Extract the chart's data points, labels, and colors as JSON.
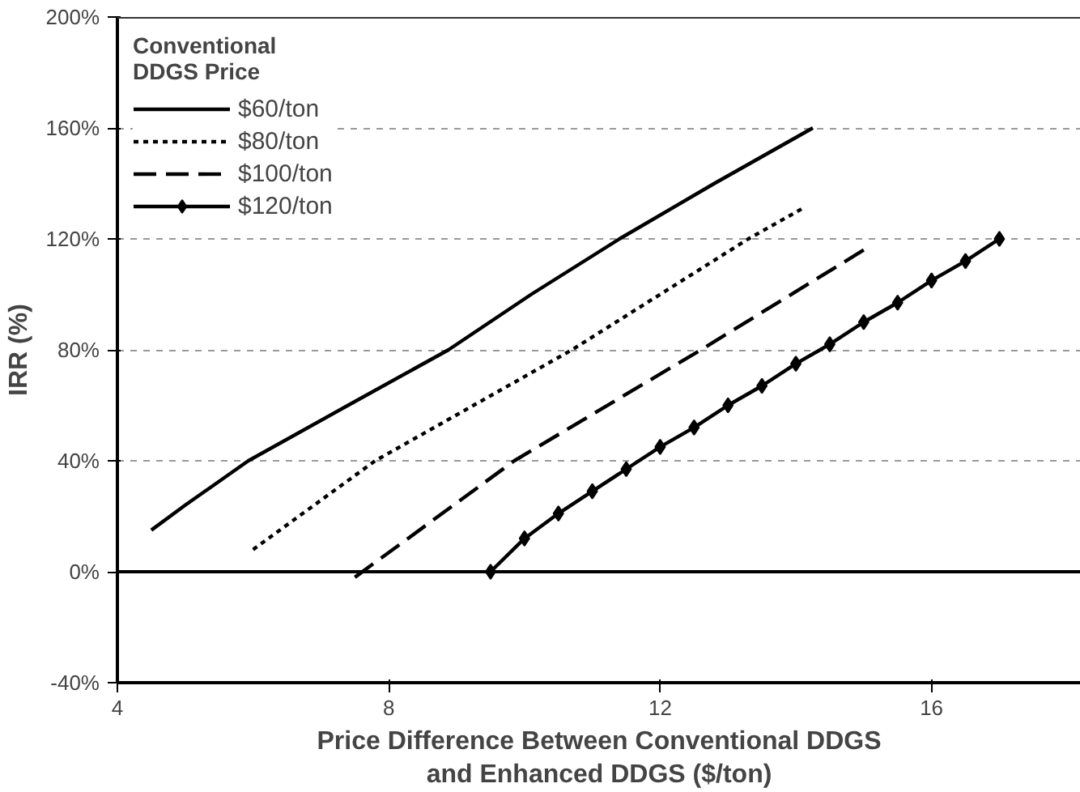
{
  "chart_data": {
    "type": "line",
    "xlabel": "Price Difference Between Conventional DDGS\nand Enhanced DDGS ($/ton)",
    "ylabel": "IRR (%)",
    "legend_title": "Conventional\nDDGS Price",
    "legend": "top left",
    "grid": "y",
    "xlim": [
      4,
      18.2
    ],
    "xticks": [
      4,
      8,
      12,
      16
    ],
    "ylim": [
      -40,
      200
    ],
    "yticks": [
      {
        "value": -40,
        "label": "-40%"
      },
      {
        "value": 0,
        "label": "0%"
      },
      {
        "value": 40,
        "label": "40%"
      },
      {
        "value": 80,
        "label": "80%"
      },
      {
        "value": 120,
        "label": "120%"
      },
      {
        "value": 160,
        "label": "160%"
      },
      {
        "value": 200,
        "label": "200%"
      }
    ],
    "ref_lines": [
      {
        "axis": "y",
        "value": 0,
        "label": null,
        "color": "#000000",
        "line_style": "solid"
      }
    ],
    "series": [
      {
        "name": "$60/ton",
        "color": "#000000",
        "line_style": "solid",
        "marker": "none",
        "x": [
          4.5,
          5,
          5.93,
          7.4,
          8.88,
          10.1,
          11.4,
          12.8,
          14.25
        ],
        "values": [
          15,
          24,
          40,
          60,
          80,
          100,
          120,
          140,
          160
        ]
      },
      {
        "name": "$80/ton",
        "color": "#000000",
        "line_style": "dotted",
        "marker": "none",
        "x": [
          6,
          7.8,
          10.7,
          13.3,
          14.1
        ],
        "values": [
          8,
          40,
          80,
          120,
          131
        ]
      },
      {
        "name": "$100/ton",
        "color": "#000000",
        "line_style": "dashed",
        "marker": "none",
        "x": [
          7.5,
          9.85,
          12.6,
          15
        ],
        "values": [
          -2,
          40,
          80,
          116
        ]
      },
      {
        "name": "$120/ton",
        "color": "#000000",
        "line_style": "solid",
        "marker": "diamond",
        "x": [
          9.5,
          10,
          10.5,
          11,
          11.5,
          12,
          12.5,
          13,
          13.5,
          14,
          14.5,
          15,
          15.5,
          16,
          16.5,
          17
        ],
        "values": [
          0,
          12,
          21,
          29,
          37,
          45,
          52,
          60,
          67,
          75,
          82,
          90,
          97,
          105,
          112,
          120
        ]
      }
    ]
  }
}
